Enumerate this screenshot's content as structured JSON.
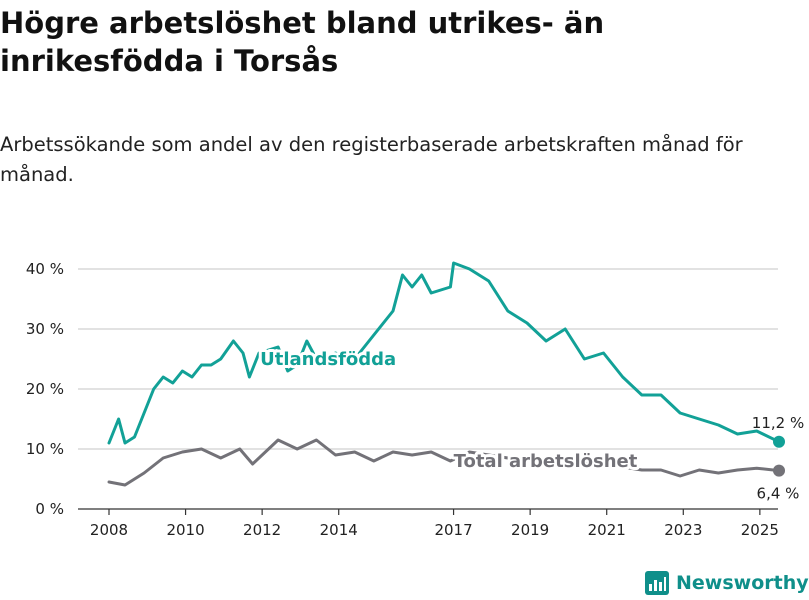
{
  "header": {
    "title": "Högre arbetslöshet bland utrikes- än inrikesfödda i Torsås",
    "subtitle": "Arbetssökande som andel av den registerbaserade arbetskraften månad för månad."
  },
  "brand": {
    "name": "Newsworthy",
    "icon": "newsworthy-logo-icon",
    "color": "#0f8f8a"
  },
  "chart_data": {
    "type": "line",
    "title": "Högre arbetslöshet bland utrikes- än inrikesfödda i Torsås",
    "subtitle": "Arbetssökande som andel av den registerbaserade arbetskraften månad för månad.",
    "xlabel": "",
    "ylabel": "",
    "x_ticks": [
      "2008",
      "2010",
      "2012",
      "2014",
      "2017",
      "2019",
      "2021",
      "2023",
      "2025"
    ],
    "y_ticks": [
      "0 %",
      "10 %",
      "20 %",
      "30 %",
      "40 %"
    ],
    "xlim": [
      "2008-01",
      "2025-07"
    ],
    "ylim": [
      0,
      40
    ],
    "grid": true,
    "legend": "inline labels",
    "series": [
      {
        "name": "Utlandsfödda",
        "color": "#12a197",
        "end_label": "11,2 %",
        "points": [
          [
            "2008-01",
            11
          ],
          [
            "2008-04",
            15
          ],
          [
            "2008-06",
            11
          ],
          [
            "2008-09",
            12
          ],
          [
            "2008-12",
            16
          ],
          [
            "2009-03",
            20
          ],
          [
            "2009-06",
            22
          ],
          [
            "2009-09",
            21
          ],
          [
            "2009-12",
            23
          ],
          [
            "2010-03",
            22
          ],
          [
            "2010-06",
            24
          ],
          [
            "2010-09",
            24
          ],
          [
            "2010-12",
            25
          ],
          [
            "2011-04",
            28
          ],
          [
            "2011-07",
            26
          ],
          [
            "2011-09",
            22
          ],
          [
            "2011-12",
            26
          ],
          [
            "2012-06",
            27
          ],
          [
            "2012-09",
            23
          ],
          [
            "2012-12",
            24
          ],
          [
            "2013-03",
            28
          ],
          [
            "2013-07",
            24
          ],
          [
            "2013-12",
            26
          ],
          [
            "2014-06",
            25
          ],
          [
            "2014-12",
            29
          ],
          [
            "2015-06",
            33
          ],
          [
            "2015-09",
            39
          ],
          [
            "2015-12",
            37
          ],
          [
            "2016-03",
            39
          ],
          [
            "2016-06",
            36
          ],
          [
            "2016-12",
            37
          ],
          [
            "2017-01",
            41
          ],
          [
            "2017-06",
            40
          ],
          [
            "2017-12",
            38
          ],
          [
            "2018-06",
            33
          ],
          [
            "2018-12",
            31
          ],
          [
            "2019-06",
            28
          ],
          [
            "2019-12",
            30
          ],
          [
            "2020-06",
            25
          ],
          [
            "2020-12",
            26
          ],
          [
            "2021-06",
            22
          ],
          [
            "2021-12",
            19
          ],
          [
            "2022-06",
            19
          ],
          [
            "2022-12",
            16
          ],
          [
            "2023-06",
            15
          ],
          [
            "2023-12",
            14
          ],
          [
            "2024-06",
            12.5
          ],
          [
            "2024-12",
            13
          ],
          [
            "2025-07",
            11.2
          ]
        ]
      },
      {
        "name": "Total arbetslöshet",
        "color": "#737278",
        "end_label": "6,4 %",
        "points": [
          [
            "2008-01",
            4.5
          ],
          [
            "2008-06",
            4
          ],
          [
            "2008-12",
            6
          ],
          [
            "2009-06",
            8.5
          ],
          [
            "2009-12",
            9.5
          ],
          [
            "2010-06",
            10
          ],
          [
            "2010-12",
            8.5
          ],
          [
            "2011-06",
            10
          ],
          [
            "2011-10",
            7.5
          ],
          [
            "2012-06",
            11.5
          ],
          [
            "2012-12",
            10
          ],
          [
            "2013-06",
            11.5
          ],
          [
            "2013-12",
            9
          ],
          [
            "2014-06",
            9.5
          ],
          [
            "2014-12",
            8
          ],
          [
            "2015-06",
            9.5
          ],
          [
            "2015-12",
            9
          ],
          [
            "2016-06",
            9.5
          ],
          [
            "2016-12",
            8
          ],
          [
            "2017-06",
            9.5
          ],
          [
            "2017-12",
            9
          ],
          [
            "2018-06",
            8.5
          ],
          [
            "2018-12",
            8.5
          ],
          [
            "2019-06",
            8.5
          ],
          [
            "2019-12",
            8
          ],
          [
            "2020-06",
            8
          ],
          [
            "2020-12",
            7.5
          ],
          [
            "2021-06",
            7
          ],
          [
            "2021-12",
            6.5
          ],
          [
            "2022-06",
            6.5
          ],
          [
            "2022-12",
            5.5
          ],
          [
            "2023-06",
            6.5
          ],
          [
            "2023-12",
            6
          ],
          [
            "2024-06",
            6.5
          ],
          [
            "2024-12",
            6.8
          ],
          [
            "2025-07",
            6.4
          ]
        ]
      }
    ]
  }
}
